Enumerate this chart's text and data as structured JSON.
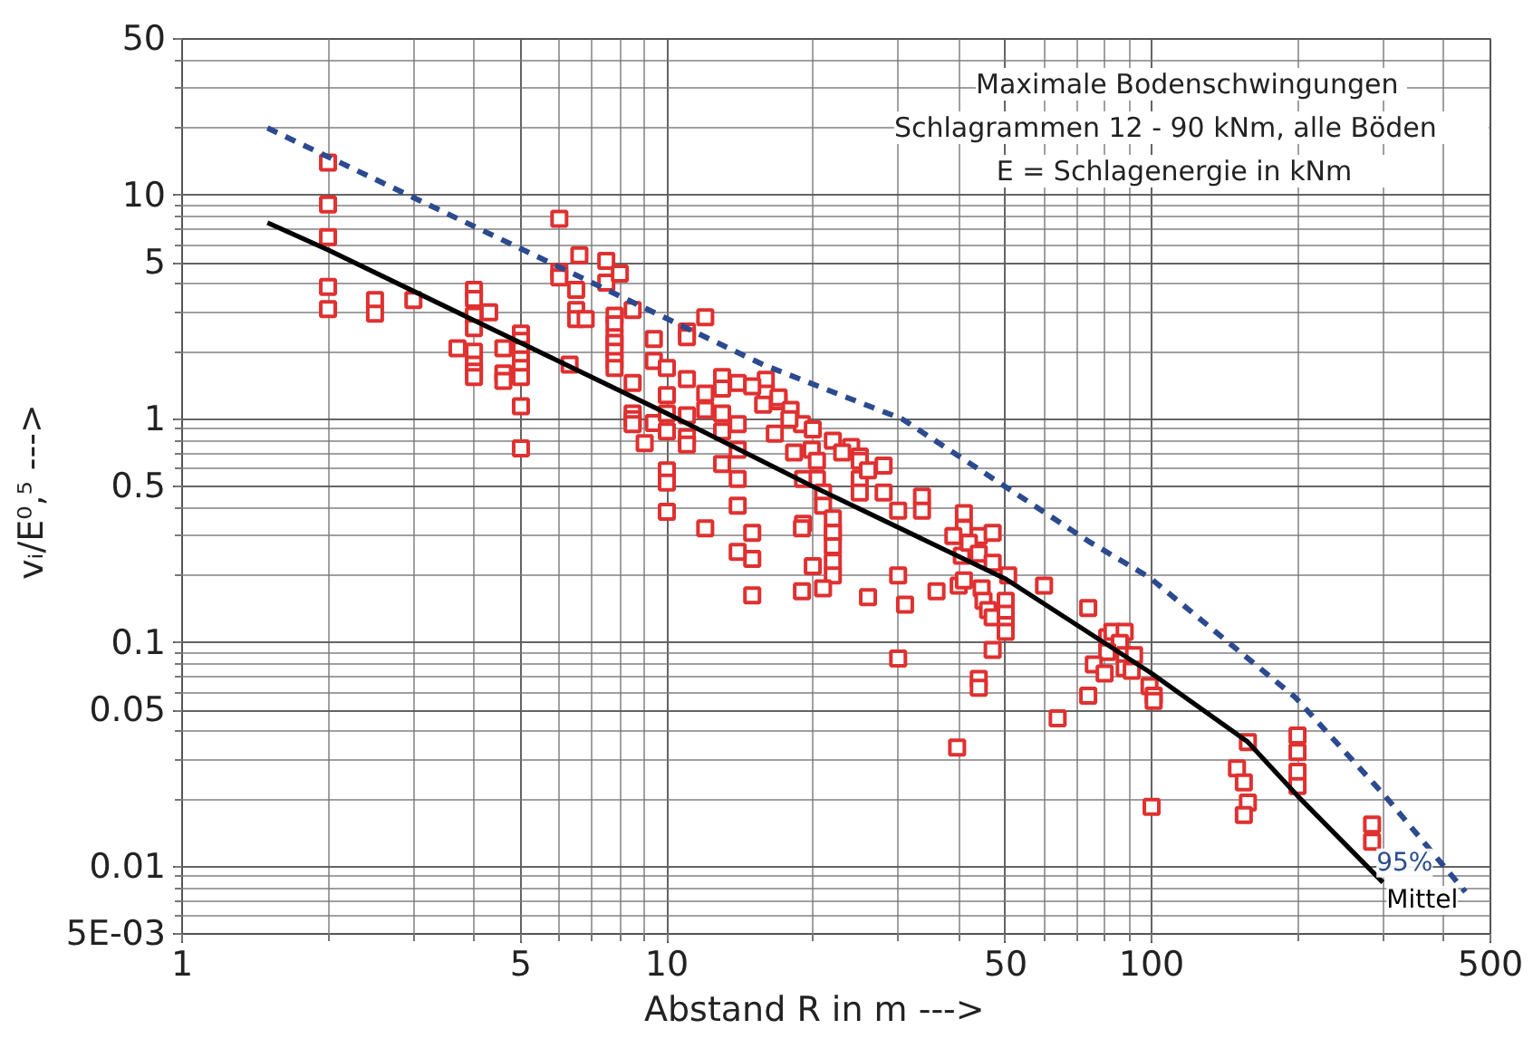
{
  "chart_data": {
    "type": "scatter",
    "xlabel": "Abstand  R  in  m  --->",
    "ylabel": "vᵢ/E⁰,⁵  --->",
    "annotations": [
      "Maximale  Bodenschwingungen",
      "Schlagrammen  12  -  90  kNm,  alle  Böden",
      "E  =  Schlagenergie  in  kNm"
    ],
    "log": "xy",
    "grid": true,
    "xlim": [
      1,
      500
    ],
    "xticks": [
      1,
      5,
      10,
      50,
      100,
      500
    ],
    "ylim": [
      0.005,
      50
    ],
    "yticks": [
      {
        "value": 0.005,
        "label": "5E-03"
      },
      0.01,
      0.05,
      0.1,
      0.5,
      1,
      5,
      10,
      50
    ],
    "series": [
      {
        "color": "#e03030",
        "marker": "square",
        "x": [
          2,
          2,
          2,
          2,
          2,
          2.5,
          2.5,
          3,
          4,
          4,
          4,
          4,
          4,
          4,
          4,
          4,
          3.7,
          4.3,
          4.6,
          4.6,
          4.6,
          5,
          5,
          5,
          5,
          5,
          5,
          5,
          5,
          6,
          6,
          6,
          6.3,
          6.5,
          6.5,
          6.5,
          6.6,
          6.8,
          7.5,
          7.5,
          7.8,
          7.8,
          7.8,
          7.8,
          7.8,
          7.8,
          7.8,
          8,
          8.5,
          8.5,
          8.5,
          8.5,
          8.5,
          9,
          9.4,
          9.4,
          9.4,
          10,
          10,
          10,
          10,
          10,
          10,
          10,
          11,
          11,
          11,
          11,
          11,
          11,
          12,
          12,
          12,
          12,
          13,
          13,
          13,
          13,
          13,
          14,
          14,
          14,
          14,
          14,
          15,
          15,
          14,
          15,
          16,
          16,
          17,
          17,
          18,
          15,
          19,
          20,
          22,
          24,
          25,
          28,
          15.8,
          17.9,
          16.7,
          18.3,
          19.9,
          20.4,
          20.4,
          21,
          21,
          19.1,
          19.1,
          22,
          22,
          23,
          25,
          25,
          25,
          26,
          28,
          30,
          33.6,
          33.6,
          41,
          41,
          39,
          44,
          47,
          19,
          22,
          22,
          22,
          22,
          20,
          19,
          21,
          26,
          30,
          31,
          30,
          36,
          40.6,
          42,
          44,
          47,
          40,
          41,
          44.6,
          45,
          46,
          47,
          50,
          50,
          50,
          50,
          50.6,
          47,
          44,
          44,
          39.7,
          60,
          64,
          74,
          74,
          81,
          83,
          88,
          86,
          81,
          88,
          92,
          76,
          80,
          88,
          91,
          99,
          101,
          101,
          100,
          158,
          150,
          155,
          158,
          155,
          200,
          200,
          200,
          200,
          285,
          285
        ],
        "values": [
          14,
          9.1,
          6.5,
          3.9,
          3.1,
          3.4,
          2.96,
          3.4,
          3.78,
          3.44,
          2.9,
          2.55,
          2,
          1.75,
          1.63,
          1.54,
          2.07,
          3,
          2.07,
          1.6,
          1.48,
          2.41,
          2.24,
          2.04,
          1.85,
          1.69,
          1.54,
          1.14,
          0.74,
          7.85,
          4.55,
          4.3,
          1.75,
          3.78,
          3.07,
          2.8,
          5.4,
          2.8,
          5.1,
          4.07,
          2.9,
          2.65,
          2.32,
          2.19,
          2,
          1.82,
          1.69,
          4.47,
          3.07,
          1.45,
          1.06,
          1,
          0.95,
          0.78,
          2.28,
          1.82,
          0.96,
          1.69,
          1.28,
          1.06,
          0.88,
          0.59,
          0.52,
          0.385,
          2.46,
          2.32,
          1.51,
          1.04,
          0.83,
          0.77,
          2.85,
          0.325,
          1.1,
          1.3,
          1.54,
          1.37,
          1.06,
          0.88,
          0.63,
          1.45,
          0.95,
          0.73,
          0.54,
          0.41,
          0.31,
          0.237,
          0.255,
          0.163,
          1.5,
          1.3,
          1.2,
          1.25,
          1.1,
          1.4,
          0.95,
          0.9,
          0.8,
          0.75,
          0.68,
          0.62,
          1.16,
          1,
          0.86,
          0.71,
          0.73,
          0.65,
          0.54,
          0.47,
          0.41,
          0.54,
          0.34,
          0.36,
          0.31,
          0.71,
          0.65,
          0.54,
          0.47,
          0.59,
          0.47,
          0.39,
          0.45,
          0.39,
          0.38,
          0.325,
          0.3,
          0.3,
          0.31,
          0.325,
          0.31,
          0.27,
          0.23,
          0.2,
          0.22,
          0.17,
          0.175,
          0.16,
          0.2,
          0.148,
          0.085,
          0.17,
          0.245,
          0.28,
          0.25,
          0.228,
          0.18,
          0.19,
          0.175,
          0.154,
          0.14,
          0.13,
          0.154,
          0.135,
          0.12,
          0.112,
          0.2,
          0.093,
          0.069,
          0.063,
          0.034,
          0.18,
          0.046,
          0.143,
          0.058,
          0.106,
          0.112,
          0.112,
          0.1,
          0.091,
          0.088,
          0.088,
          0.08,
          0.073,
          0.077,
          0.075,
          0.064,
          0.058,
          0.055,
          0.0185,
          0.036,
          0.0275,
          0.0238,
          0.0193,
          0.017,
          0.0385,
          0.0325,
          0.0265,
          0.0229,
          0.0154,
          0.0129
        ]
      },
      {
        "type": "line",
        "name": "Mittel",
        "color": "#000000",
        "line_style": "solid",
        "x": [
          1.5,
          2,
          5,
          10,
          20,
          50,
          100,
          158,
          200,
          300
        ],
        "values": [
          7.55,
          5.7,
          2.19,
          1.06,
          0.5,
          0.193,
          0.073,
          0.036,
          0.0207,
          0.0085
        ]
      },
      {
        "type": "line",
        "name": "95%",
        "color": "#2b4a8f",
        "line_style": "dashed",
        "x": [
          1.5,
          6.1,
          15.8,
          30.6,
          74,
          99,
          198,
          303,
          444
        ],
        "values": [
          20,
          4.7,
          1.75,
          1,
          0.285,
          0.196,
          0.057,
          0.0207,
          0.0077
        ]
      }
    ]
  }
}
